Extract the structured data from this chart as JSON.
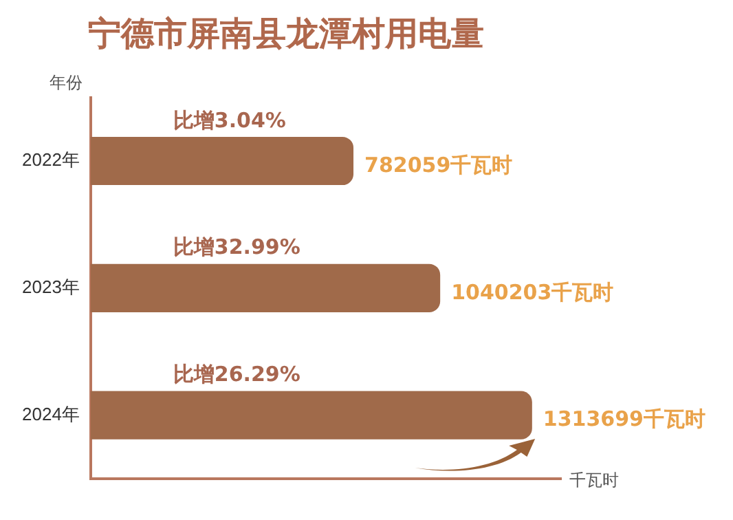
{
  "chart_data": {
    "type": "bar",
    "orientation": "horizontal",
    "title": "宁德市屏南县龙潭村用电量",
    "ylabel": "年份",
    "xlabel": "千瓦时",
    "categories": [
      "2022年",
      "2023年",
      "2024年"
    ],
    "values": [
      782059,
      1040203,
      1313699
    ],
    "value_labels": [
      "782059千瓦时",
      "1040203千瓦时",
      "1313699千瓦时"
    ],
    "color": "#a06a4a",
    "xlim": [
      0,
      1400000
    ],
    "tick_labels": "y",
    "grid": false,
    "legend": false,
    "annotations": [
      "比增3.04%",
      "比增32.99%",
      "比增26.29%"
    ]
  }
}
